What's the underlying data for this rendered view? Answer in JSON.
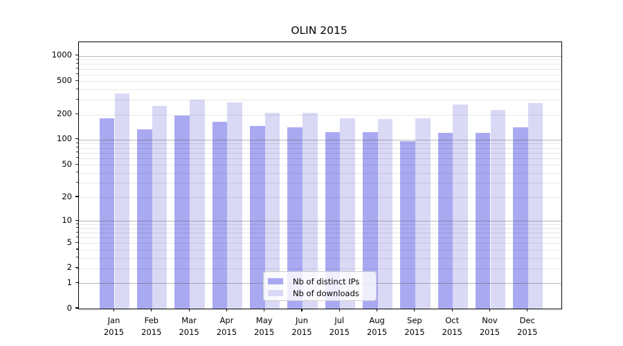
{
  "chart_data": {
    "type": "bar",
    "title": "OLIN 2015",
    "categories": [
      "Jan 2015",
      "Feb 2015",
      "Mar 2015",
      "Apr 2015",
      "May 2015",
      "Jun 2015",
      "Jul 2015",
      "Aug 2015",
      "Sep 2015",
      "Oct 2015",
      "Nov 2015",
      "Dec 2015"
    ],
    "series": [
      {
        "name": "Nb of distinct IPs",
        "color": "#a9a9f2",
        "values": [
          182,
          132,
          196,
          163,
          146,
          141,
          124,
          123,
          96,
          122,
          121,
          142
        ]
      },
      {
        "name": "Nb of downloads",
        "color": "#d9d9f6",
        "values": [
          355,
          252,
          300,
          277,
          209,
          210,
          182,
          178,
          179,
          263,
          225,
          272
        ]
      }
    ],
    "xlabel": "",
    "ylabel": "",
    "yscale": "log10(value+1)",
    "y_ticks": [
      0,
      1,
      2,
      5,
      10,
      20,
      50,
      100,
      200,
      500,
      1000
    ],
    "ylim": [
      0,
      1450
    ],
    "grid": true,
    "legend_position": "lower center"
  }
}
